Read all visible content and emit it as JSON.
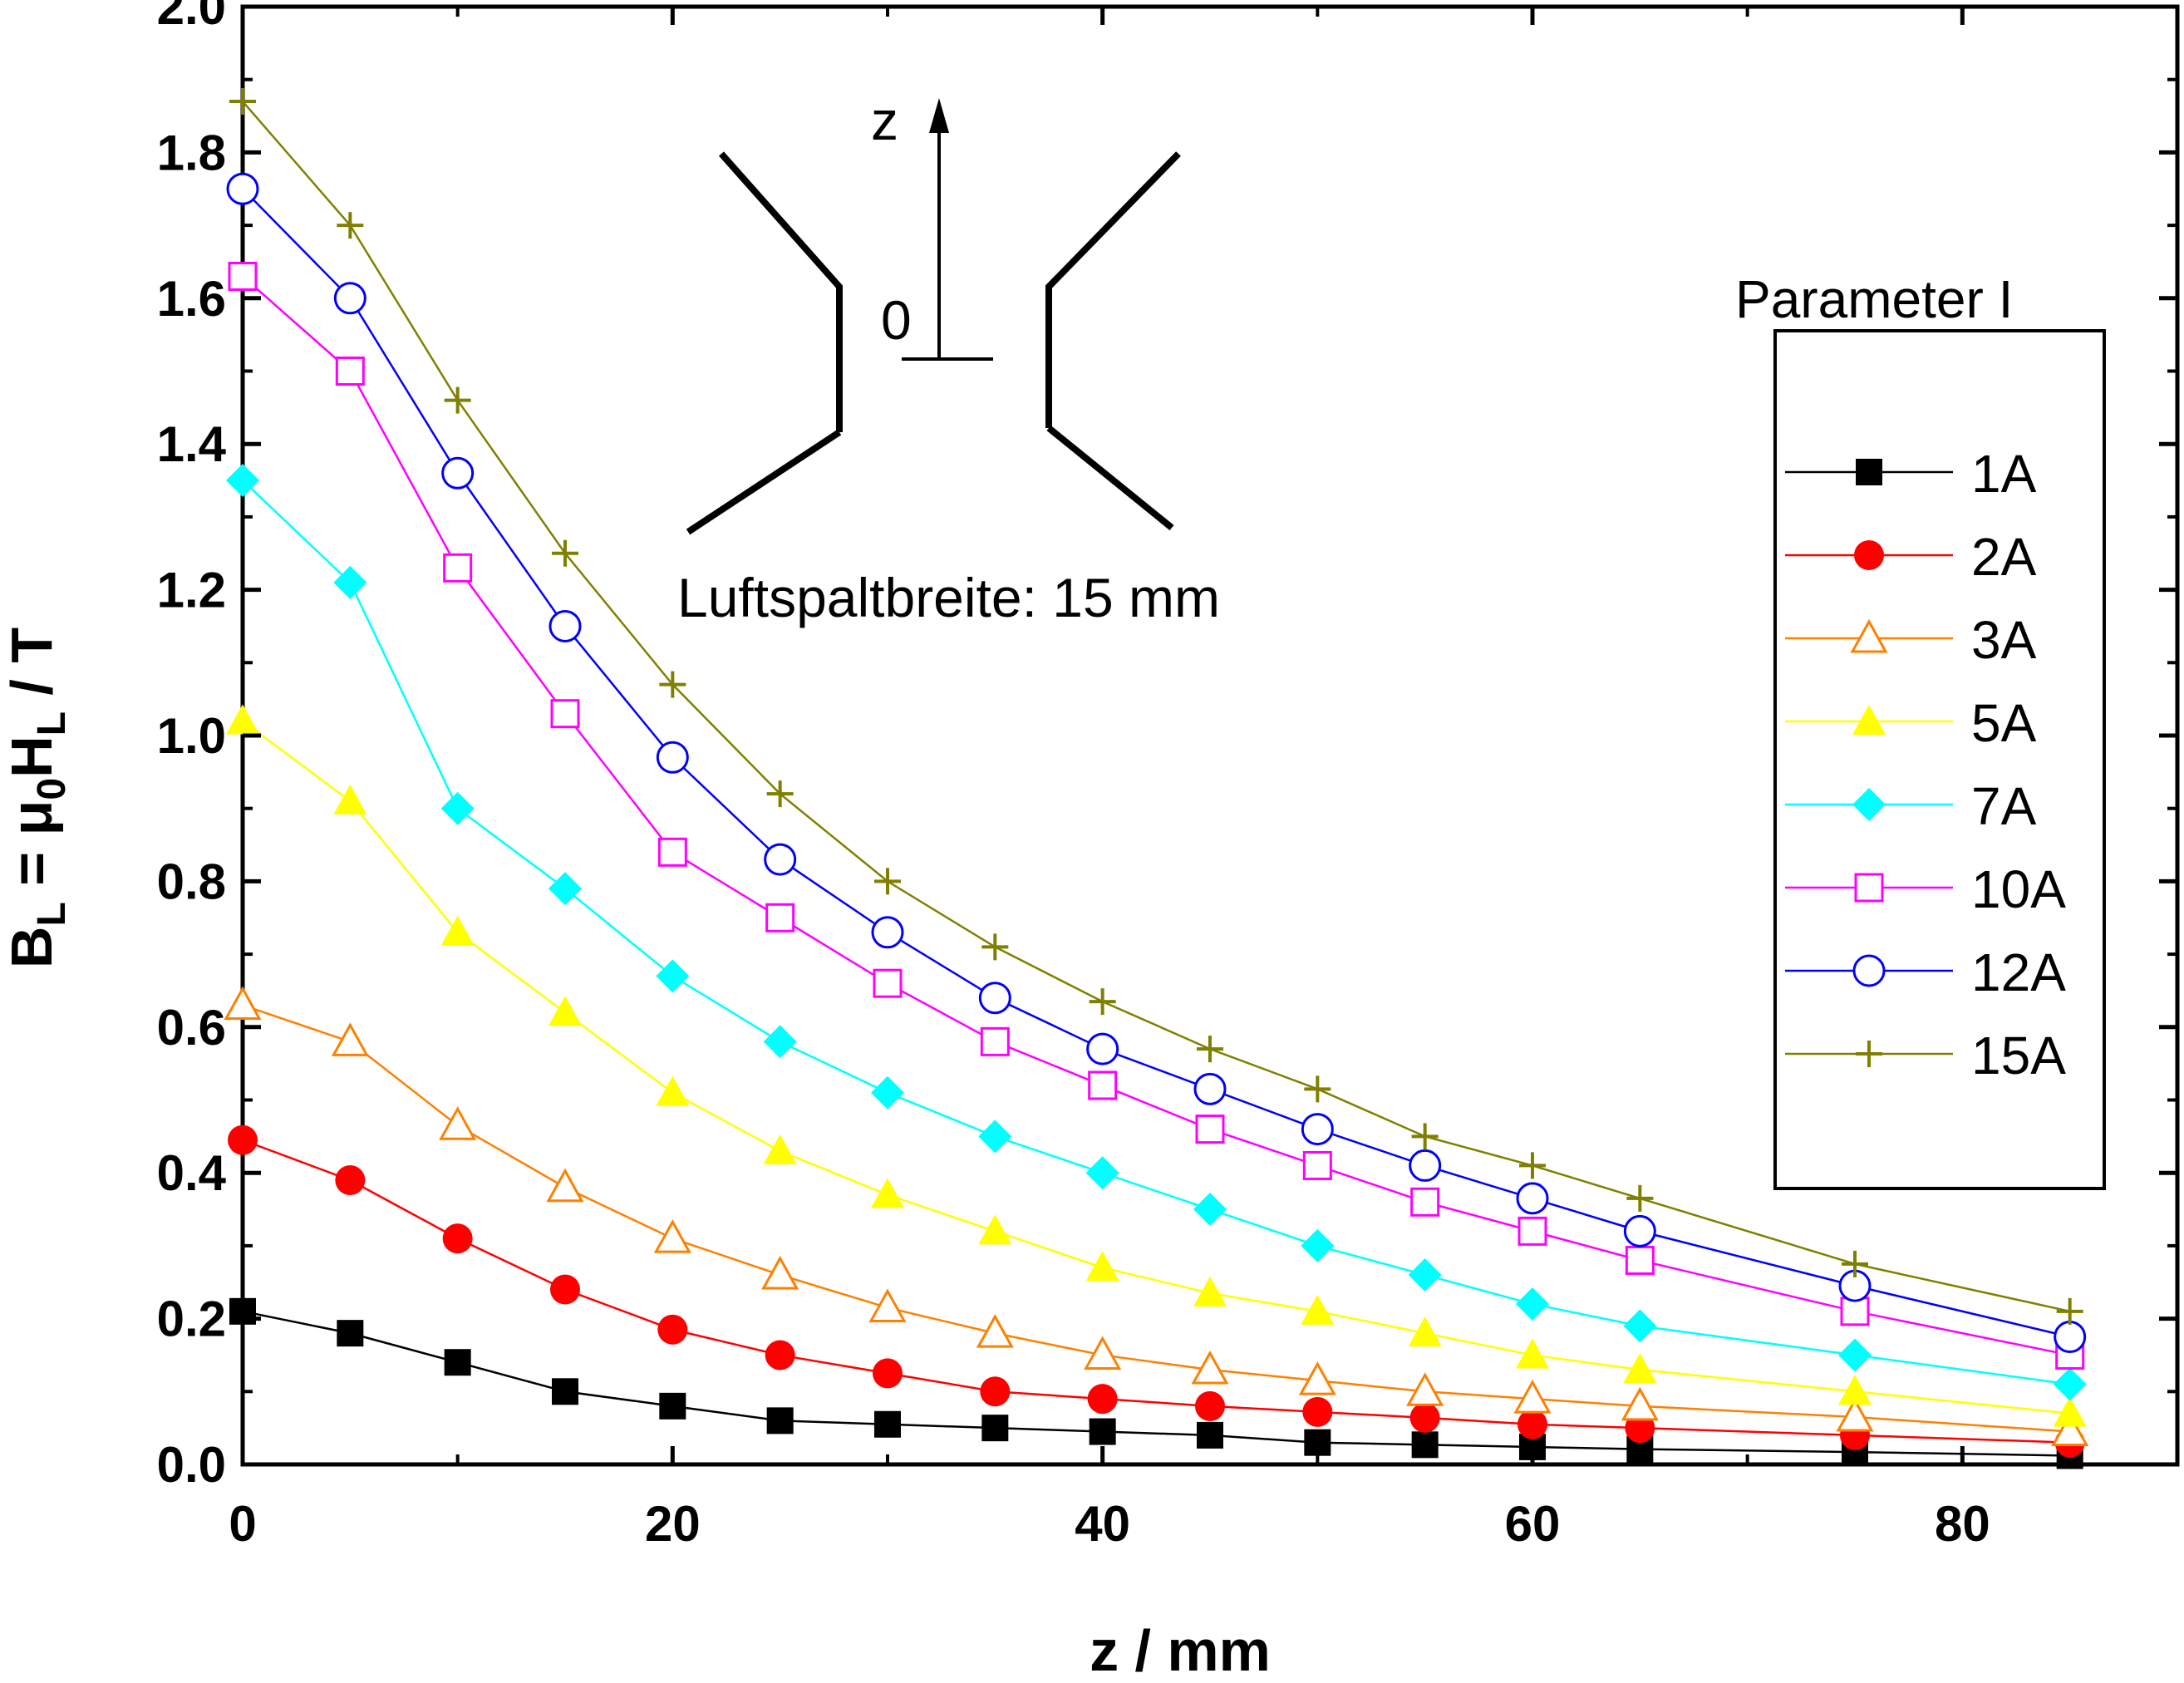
{
  "chart_data": {
    "type": "line",
    "title": "",
    "xlabel": "z / mm",
    "ylabel": {
      "base": "B",
      "base_sub": "L",
      "mid": " = μ",
      "mid_sub": "0",
      "h": "H",
      "h_sub": "L",
      "tail": " / T"
    },
    "xlim": [
      0,
      90
    ],
    "ylim": [
      0,
      2.0
    ],
    "xticks": [
      0,
      20,
      40,
      60,
      80
    ],
    "xtick_labels": [
      "0",
      "20",
      "40",
      "60",
      "80"
    ],
    "yticks": [
      0.0,
      0.2,
      0.4,
      0.6,
      0.8,
      1.0,
      1.2,
      1.4,
      1.6,
      1.8,
      2.0
    ],
    "ytick_labels": [
      "0.0",
      "0.2",
      "0.4",
      "0.6",
      "0.8",
      "1.0",
      "1.2",
      "1.4",
      "1.6",
      "1.8",
      "2.0"
    ],
    "grid": false,
    "legend_title": "Parameter I",
    "legend_position": "right",
    "x": [
      0,
      5,
      10,
      15,
      20,
      25,
      30,
      35,
      40,
      45,
      50,
      55,
      60,
      65,
      75,
      85
    ],
    "series": [
      {
        "name": "1A",
        "color": "#000000",
        "marker": "square-filled",
        "values": [
          0.21,
          0.18,
          0.14,
          0.1,
          0.08,
          0.06,
          0.055,
          0.05,
          0.045,
          0.04,
          0.03,
          0.027,
          0.024,
          0.021,
          0.017,
          0.012
        ]
      },
      {
        "name": "2A",
        "color": "#ff0000",
        "marker": "circle-filled",
        "values": [
          0.445,
          0.39,
          0.31,
          0.24,
          0.185,
          0.15,
          0.125,
          0.1,
          0.09,
          0.08,
          0.072,
          0.064,
          0.055,
          0.05,
          0.04,
          0.03
        ]
      },
      {
        "name": "3A",
        "color": "#ff8000",
        "marker": "triangle-open",
        "values": [
          0.63,
          0.58,
          0.465,
          0.38,
          0.31,
          0.26,
          0.215,
          0.18,
          0.15,
          0.13,
          0.115,
          0.1,
          0.09,
          0.08,
          0.065,
          0.045
        ]
      },
      {
        "name": "5A",
        "color": "#ffff00",
        "marker": "triangle-filled",
        "values": [
          1.02,
          0.91,
          0.73,
          0.62,
          0.51,
          0.43,
          0.37,
          0.32,
          0.27,
          0.235,
          0.21,
          0.18,
          0.15,
          0.13,
          0.1,
          0.07
        ]
      },
      {
        "name": "7A",
        "color": "#00ffff",
        "marker": "diamond-filled",
        "values": [
          1.35,
          1.21,
          0.9,
          0.79,
          0.67,
          0.58,
          0.51,
          0.45,
          0.4,
          0.35,
          0.3,
          0.26,
          0.22,
          0.19,
          0.15,
          0.11
        ]
      },
      {
        "name": "10A",
        "color": "#ff00ff",
        "marker": "square-open",
        "values": [
          1.63,
          1.5,
          1.23,
          1.03,
          0.84,
          0.75,
          0.66,
          0.58,
          0.52,
          0.46,
          0.41,
          0.36,
          0.32,
          0.28,
          0.21,
          0.15
        ]
      },
      {
        "name": "12A",
        "color": "#0000ff",
        "marker": "circle-open",
        "values": [
          1.75,
          1.6,
          1.36,
          1.15,
          0.97,
          0.83,
          0.73,
          0.64,
          0.57,
          0.515,
          0.46,
          0.41,
          0.365,
          0.32,
          0.245,
          0.175
        ]
      },
      {
        "name": "15A",
        "color": "#808000",
        "marker": "plus",
        "values": [
          1.87,
          1.7,
          1.46,
          1.25,
          1.07,
          0.92,
          0.8,
          0.71,
          0.635,
          0.57,
          0.515,
          0.45,
          0.41,
          0.365,
          0.275,
          0.21
        ]
      }
    ],
    "annotations": {
      "air_gap_text": "Luftspaltbreite: 15 mm",
      "sketch_axis_label": "z",
      "sketch_origin_label": "0"
    }
  }
}
